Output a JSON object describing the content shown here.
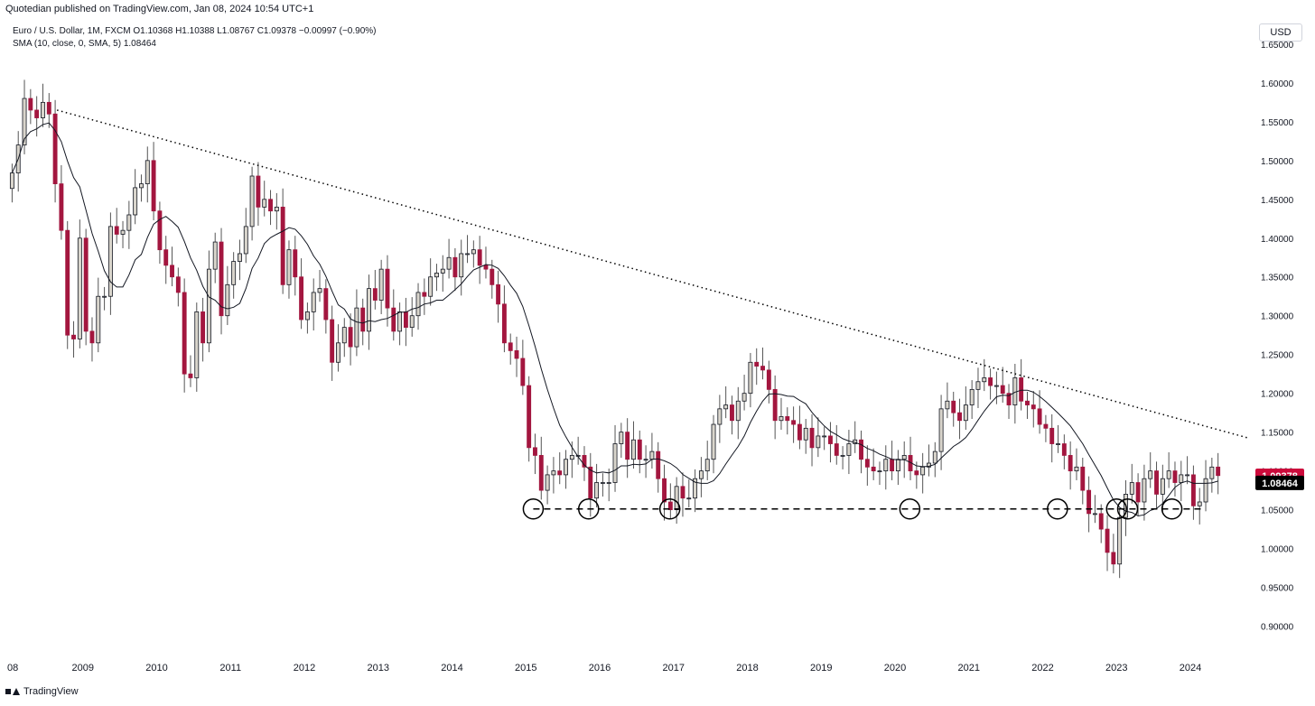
{
  "header": {
    "publisher_line": "Quotedian published on TradingView.com, Jan 08, 2024 10:54 UTC+1",
    "symbol_line": "Euro / U.S. Dollar, 1M, FXCM  O1.10368  H1.10388  L1.08767  C1.09378  −0.00997 (−0.90%)",
    "indicator_line": "SMA (10, close, 0, SMA, 5)  1.08464",
    "currency_button": "USD"
  },
  "footer": {
    "brand": "TradingView"
  },
  "colors": {
    "up_candle": "#d9d5cc",
    "down_candle": "#a3163f",
    "wick": "#555555",
    "sma_line": "#131722",
    "price_badge": "#cc0a3b",
    "sma_badge": "#000000"
  },
  "chart_data": {
    "type": "candlestick",
    "title": "Euro / U.S. Dollar, 1M, FXCM",
    "ylim": [
      0.875,
      1.665
    ],
    "y_ticks": [
      "1.65000",
      "1.60000",
      "1.55000",
      "1.50000",
      "1.45000",
      "1.40000",
      "1.35000",
      "1.30000",
      "1.25000",
      "1.20000",
      "1.15000",
      "1.10000",
      "1.05000",
      "1.00000",
      "0.95000",
      "0.90000"
    ],
    "x_tick_labels": [
      {
        "year": 2008,
        "label": "08"
      },
      {
        "year": 2009,
        "label": "2009"
      },
      {
        "year": 2010,
        "label": "2010"
      },
      {
        "year": 2011,
        "label": "2011"
      },
      {
        "year": 2012,
        "label": "2012"
      },
      {
        "year": 2013,
        "label": "2013"
      },
      {
        "year": 2014,
        "label": "2014"
      },
      {
        "year": 2015,
        "label": "2015"
      },
      {
        "year": 2016,
        "label": "2016"
      },
      {
        "year": 2017,
        "label": "2017"
      },
      {
        "year": 2018,
        "label": "2018"
      },
      {
        "year": 2019,
        "label": "2019"
      },
      {
        "year": 2020,
        "label": "2020"
      },
      {
        "year": 2021,
        "label": "2021"
      },
      {
        "year": 2022,
        "label": "2022"
      },
      {
        "year": 2023,
        "label": "2023"
      },
      {
        "year": 2024,
        "label": "2024"
      }
    ],
    "start_month": "2008-01",
    "monthly_close": [
      1.484,
      1.52,
      1.58,
      1.565,
      1.555,
      1.575,
      1.56,
      1.47,
      1.41,
      1.275,
      1.27,
      1.4,
      1.28,
      1.265,
      1.325,
      1.325,
      1.415,
      1.405,
      1.41,
      1.43,
      1.465,
      1.47,
      1.5,
      1.435,
      1.385,
      1.365,
      1.35,
      1.33,
      1.225,
      1.22,
      1.305,
      1.265,
      1.36,
      1.395,
      1.3,
      1.34,
      1.37,
      1.38,
      1.415,
      1.48,
      1.44,
      1.45,
      1.435,
      1.44,
      1.34,
      1.385,
      1.35,
      1.295,
      1.305,
      1.33,
      1.335,
      1.295,
      1.24,
      1.265,
      1.285,
      1.26,
      1.31,
      1.28,
      1.335,
      1.32,
      1.36,
      1.31,
      1.28,
      1.305,
      1.285,
      1.3,
      1.33,
      1.325,
      1.35,
      1.355,
      1.36,
      1.375,
      1.35,
      1.38,
      1.38,
      1.385,
      1.365,
      1.36,
      1.34,
      1.315,
      1.265,
      1.255,
      1.245,
      1.21,
      1.13,
      1.12,
      1.075,
      1.095,
      1.1,
      1.095,
      1.115,
      1.12,
      1.12,
      1.105,
      1.065,
      1.085,
      1.085,
      1.085,
      1.135,
      1.15,
      1.115,
      1.14,
      1.115,
      1.115,
      1.125,
      1.09,
      1.06,
      1.05,
      1.08,
      1.065,
      1.065,
      1.09,
      1.1,
      1.115,
      1.16,
      1.18,
      1.185,
      1.165,
      1.19,
      1.2,
      1.24,
      1.235,
      1.23,
      1.205,
      1.165,
      1.17,
      1.165,
      1.16,
      1.14,
      1.155,
      1.13,
      1.145,
      1.145,
      1.135,
      1.12,
      1.12,
      1.135,
      1.14,
      1.115,
      1.105,
      1.1,
      1.1,
      1.115,
      1.1,
      1.115,
      1.12,
      1.1,
      1.095,
      1.105,
      1.11,
      1.125,
      1.18,
      1.19,
      1.175,
      1.165,
      1.185,
      1.205,
      1.215,
      1.22,
      1.21,
      1.21,
      1.2,
      1.185,
      1.22,
      1.19,
      1.185,
      1.18,
      1.16,
      1.155,
      1.135,
      1.135,
      1.12,
      1.1,
      1.105,
      1.075,
      1.045,
      1.045,
      1.025,
      0.995,
      0.98,
      1.04,
      1.07,
      1.085,
      1.06,
      1.09,
      1.1,
      1.07,
      1.09,
      1.1,
      1.085,
      1.095,
      1.095,
      1.055,
      1.06,
      1.09,
      1.105,
      1.094
    ],
    "sma_period": 10,
    "sma_last_value": 1.08464,
    "last_close": 1.09378,
    "price_label": "1.09378",
    "sma_label": "1.08464",
    "trendline": {
      "start": {
        "year": 2008.65,
        "price": 1.565
      },
      "end": {
        "year": 2024.8,
        "price": 1.142
      },
      "style": "dotted"
    },
    "support_line": {
      "price": 1.051,
      "start_year": 2015.1,
      "end_year": 2024.2,
      "style": "dashed"
    },
    "support_touches": [
      2015.1,
      2015.85,
      2016.95,
      2020.2,
      2022.2,
      2023.0,
      2023.15,
      2023.75
    ]
  }
}
